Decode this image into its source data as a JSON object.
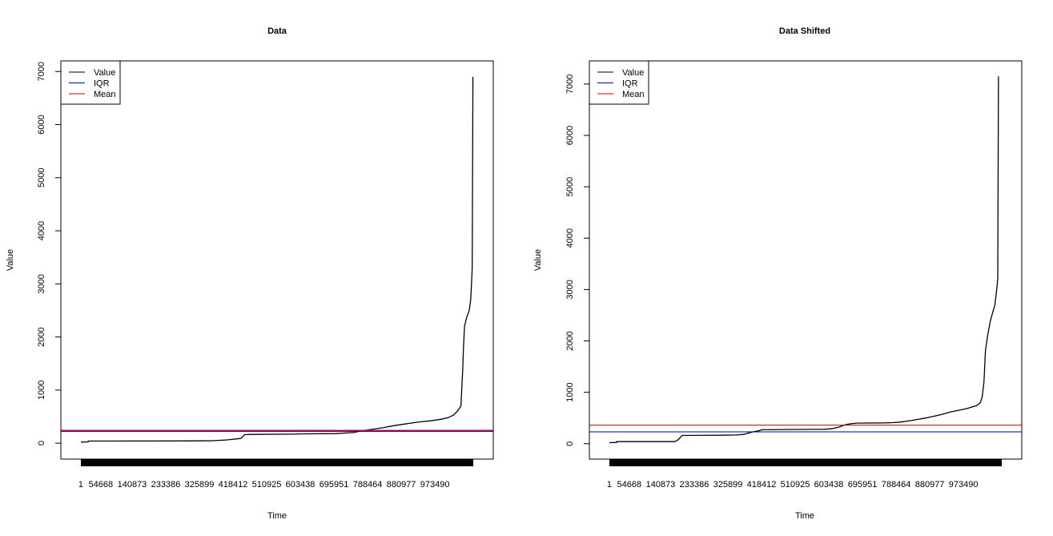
{
  "chart_data": [
    {
      "type": "line",
      "title": "Data",
      "xlabel": "Time",
      "ylabel": "Value",
      "ylim": [
        -300,
        7200
      ],
      "yticks": [
        0,
        1000,
        2000,
        3000,
        4000,
        5000,
        6000,
        7000
      ],
      "xlim": [
        -55000,
        1134000
      ],
      "x_tick_labels": [
        {
          "x": 1,
          "label": "1"
        },
        {
          "x": 54668,
          "label": "54668"
        },
        {
          "x": 140873,
          "label": "140873"
        },
        {
          "x": 233386,
          "label": "233386"
        },
        {
          "x": 325899,
          "label": "325899"
        },
        {
          "x": 418412,
          "label": "418412"
        },
        {
          "x": 510925,
          "label": "510925"
        },
        {
          "x": 603438,
          "label": "603438"
        },
        {
          "x": 695951,
          "label": "695951"
        },
        {
          "x": 788464,
          "label": "788464"
        },
        {
          "x": 880977,
          "label": "880977"
        },
        {
          "x": 973490,
          "label": "973490"
        }
      ],
      "x_range_max": 1079000,
      "legend": {
        "position": "top-left",
        "entries": [
          {
            "label": "Value",
            "color": "#000000"
          },
          {
            "label": "IQR",
            "color": "#00008b"
          },
          {
            "label": "Mean",
            "color": "#cc0000"
          }
        ]
      },
      "hlines": {
        "iqr": 230,
        "mean": 238
      },
      "series": [
        {
          "name": "Value",
          "color": "#000000",
          "points": [
            [
              1,
              20
            ],
            [
              20000,
              25
            ],
            [
              20000,
              40
            ],
            [
              60000,
              40
            ],
            [
              300000,
              42
            ],
            [
              360000,
              45
            ],
            [
              400000,
              60
            ],
            [
              440000,
              90
            ],
            [
              450000,
              160
            ],
            [
              470000,
              165
            ],
            [
              580000,
              170
            ],
            [
              620000,
              175
            ],
            [
              700000,
              180
            ],
            [
              750000,
              200
            ],
            [
              770000,
              230
            ],
            [
              800000,
              260
            ],
            [
              830000,
              290
            ],
            [
              860000,
              330
            ],
            [
              900000,
              370
            ],
            [
              930000,
              400
            ],
            [
              960000,
              420
            ],
            [
              990000,
              450
            ],
            [
              1010000,
              480
            ],
            [
              1025000,
              530
            ],
            [
              1035000,
              600
            ],
            [
              1045000,
              700
            ],
            [
              1050000,
              1400
            ],
            [
              1052000,
              1800
            ],
            [
              1055000,
              2200
            ],
            [
              1060000,
              2350
            ],
            [
              1068000,
              2500
            ],
            [
              1072000,
              2700
            ],
            [
              1074000,
              3000
            ],
            [
              1076000,
              3300
            ],
            [
              1078000,
              6900
            ]
          ]
        }
      ]
    },
    {
      "type": "line",
      "title": "Data Shifted",
      "xlabel": "Time",
      "ylabel": "Value",
      "ylim": [
        -300,
        7450
      ],
      "yticks": [
        0,
        1000,
        2000,
        3000,
        4000,
        5000,
        6000,
        7000
      ],
      "xlim": [
        -55000,
        1134000
      ],
      "x_tick_labels": [
        {
          "x": 1,
          "label": "1"
        },
        {
          "x": 54668,
          "label": "54668"
        },
        {
          "x": 140873,
          "label": "140873"
        },
        {
          "x": 233386,
          "label": "233386"
        },
        {
          "x": 325899,
          "label": "325899"
        },
        {
          "x": 418412,
          "label": "418412"
        },
        {
          "x": 510925,
          "label": "510925"
        },
        {
          "x": 603438,
          "label": "603438"
        },
        {
          "x": 695951,
          "label": "695951"
        },
        {
          "x": 788464,
          "label": "788464"
        },
        {
          "x": 880977,
          "label": "880977"
        },
        {
          "x": 973490,
          "label": "973490"
        }
      ],
      "x_range_max": 1079000,
      "legend": {
        "position": "top-left",
        "entries": [
          {
            "label": "Value",
            "color": "#000000"
          },
          {
            "label": "IQR",
            "color": "#00008b"
          },
          {
            "label": "Mean",
            "color": "#cc0000"
          }
        ]
      },
      "hlines": {
        "iqr": 230,
        "mean": 360
      },
      "series": [
        {
          "name": "Value",
          "color": "#000000",
          "points": [
            [
              1,
              20
            ],
            [
              20000,
              25
            ],
            [
              20000,
              40
            ],
            [
              180000,
              40
            ],
            [
              190000,
              80
            ],
            [
              200000,
              160
            ],
            [
              310000,
              165
            ],
            [
              350000,
              170
            ],
            [
              370000,
              180
            ],
            [
              380000,
              200
            ],
            [
              395000,
              230
            ],
            [
              410000,
              250
            ],
            [
              420000,
              270
            ],
            [
              480000,
              275
            ],
            [
              590000,
              280
            ],
            [
              610000,
              290
            ],
            [
              630000,
              320
            ],
            [
              650000,
              370
            ],
            [
              665000,
              390
            ],
            [
              680000,
              400
            ],
            [
              760000,
              405
            ],
            [
              780000,
              410
            ],
            [
              800000,
              420
            ],
            [
              830000,
              450
            ],
            [
              870000,
              500
            ],
            [
              910000,
              560
            ],
            [
              940000,
              620
            ],
            [
              980000,
              680
            ],
            [
              1010000,
              740
            ],
            [
              1020000,
              800
            ],
            [
              1025000,
              900
            ],
            [
              1030000,
              1200
            ],
            [
              1034000,
              1800
            ],
            [
              1040000,
              2100
            ],
            [
              1048000,
              2400
            ],
            [
              1060000,
              2700
            ],
            [
              1065000,
              3000
            ],
            [
              1068000,
              3200
            ],
            [
              1070000,
              7150
            ]
          ]
        }
      ]
    }
  ]
}
